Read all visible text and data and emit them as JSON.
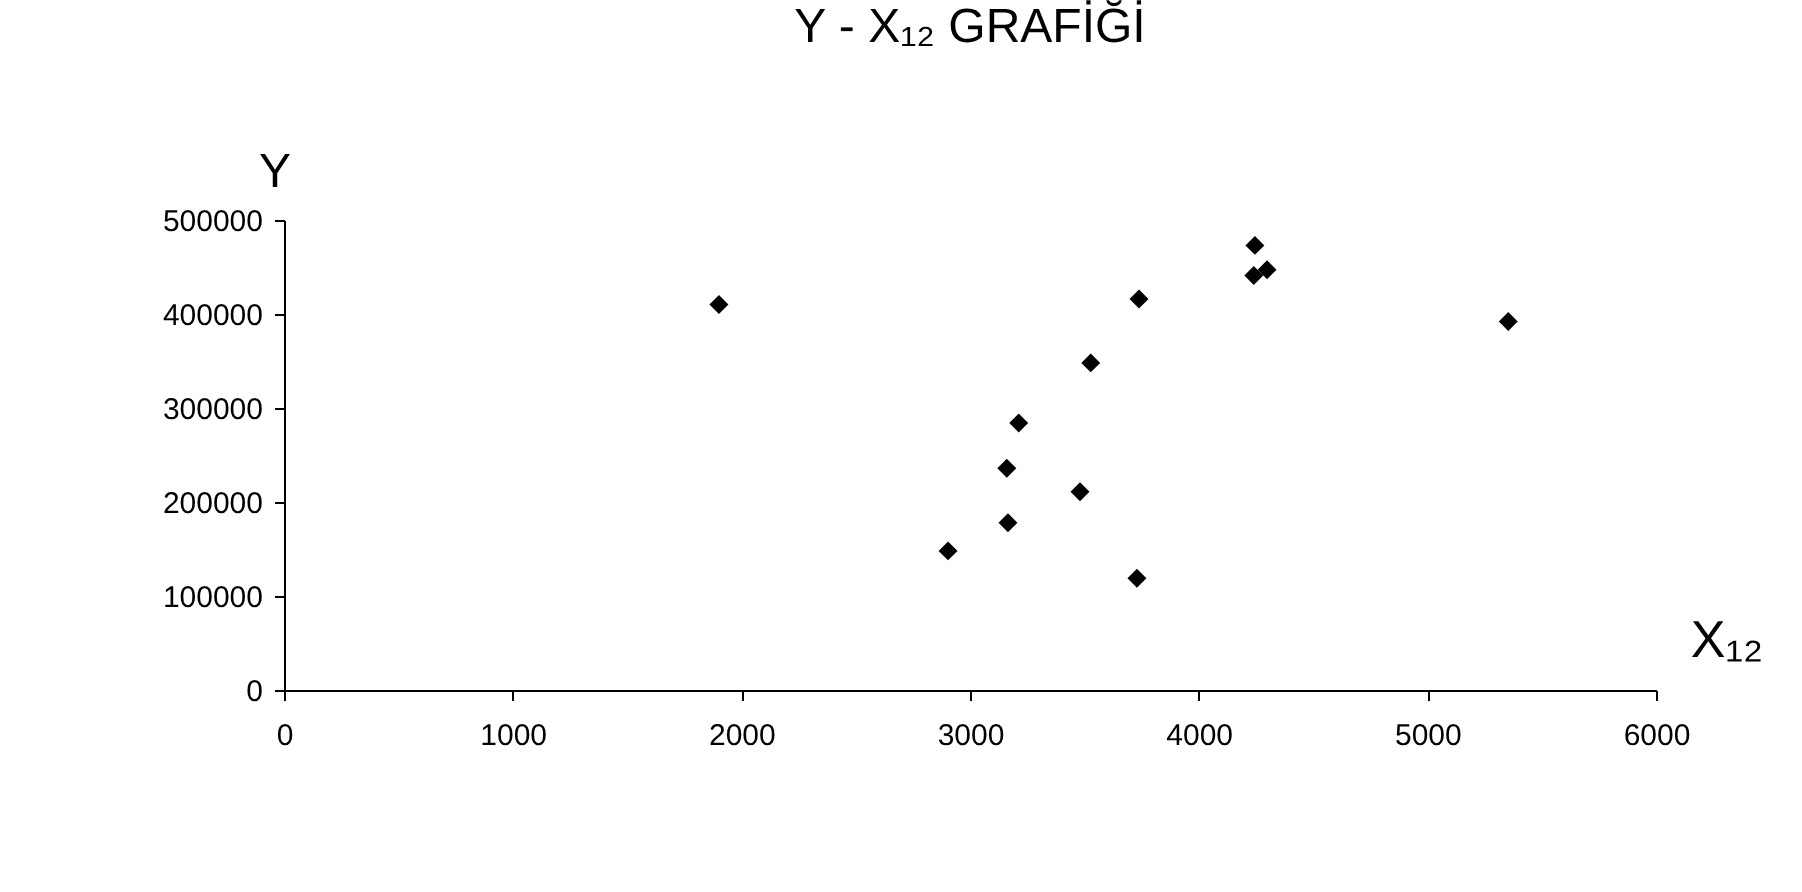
{
  "chart_data": {
    "type": "scatter",
    "title": "Y - X₁₂ GRAFİĞİ",
    "xlabel": "X₁₂",
    "ylabel": "Y",
    "x": [
      1902,
      2904,
      3161,
      3166,
      3213,
      3481,
      3528,
      3739,
      3730,
      4246,
      4241,
      4299,
      5354
    ],
    "series": [
      {
        "color": "#000000",
        "values": [
          410000,
          148000,
          236000,
          178000,
          284000,
          211000,
          348000,
          416000,
          119000,
          473000,
          441000,
          447000,
          392000
        ]
      }
    ],
    "xlim": [
      0,
      6000
    ],
    "xticks": [
      0,
      1000,
      2000,
      3000,
      4000,
      5000,
      6000
    ],
    "ylim": [
      0,
      500000
    ],
    "yticks": [
      0,
      100000,
      200000,
      300000,
      400000,
      500000
    ],
    "marker": "diamond",
    "grid": false,
    "legend": false
  }
}
